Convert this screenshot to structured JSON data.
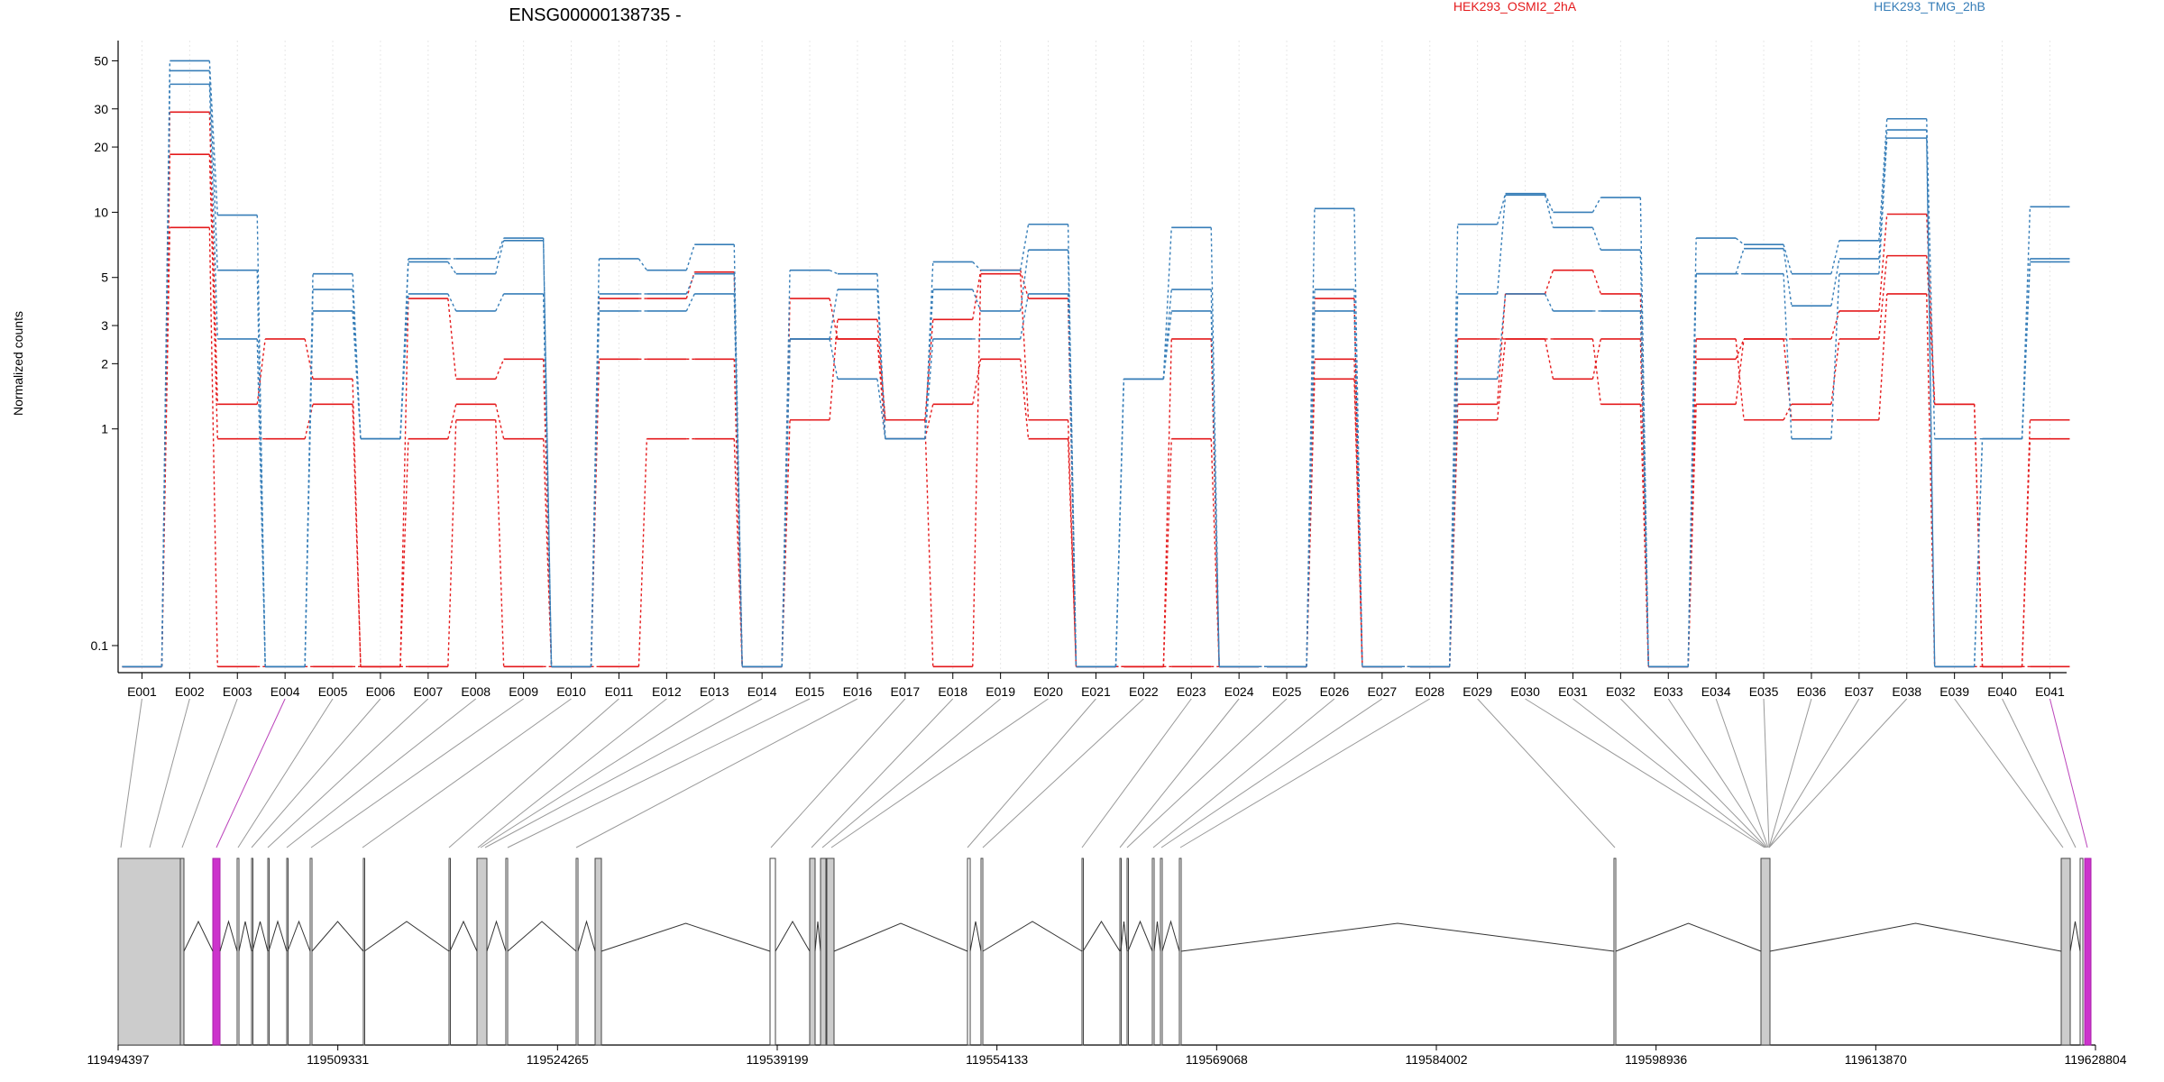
{
  "chart_data": {
    "type": "line",
    "title": "ENSG00000138735 -",
    "ylabel": "Normalized counts",
    "xlabel": "",
    "y_scale": "log",
    "ylim": [
      0.075,
      62
    ],
    "y_ticks": [
      0.1,
      1,
      2,
      3,
      5,
      10,
      20,
      30,
      50
    ],
    "floor_value": 0.08,
    "grid": "vertical dotted lines at each exon",
    "legend_placement": "top-right",
    "colors": {
      "red": "#e41a1c",
      "blue": "#377eb8",
      "intron": "#555555",
      "exon_fill": "#cccccc",
      "highlight": "#cc33cc"
    },
    "categories": [
      "E001",
      "E002",
      "E003",
      "E004",
      "E005",
      "E006",
      "E007",
      "E008",
      "E009",
      "E010",
      "E011",
      "E012",
      "E013",
      "E014",
      "E015",
      "E016",
      "E017",
      "E018",
      "E019",
      "E020",
      "E021",
      "E022",
      "E023",
      "E024",
      "E025",
      "E026",
      "E027",
      "E028",
      "E029",
      "E030",
      "E031",
      "E032",
      "E033",
      "E034",
      "E035",
      "E036",
      "E037",
      "E038",
      "E039",
      "E040",
      "E041"
    ],
    "highlighted_exons": [
      "E004",
      "E041"
    ],
    "series": [
      {
        "name": "HEK293_OSMI2_2hA",
        "color": "#e41a1c",
        "values": [
          0.08,
          29,
          1.3,
          2.6,
          1.7,
          0.08,
          4,
          1.7,
          2.1,
          0.08,
          4,
          4,
          5.3,
          0.08,
          4,
          2.6,
          1.1,
          3.2,
          5.4,
          4,
          0.08,
          0.08,
          2.6,
          0.08,
          0.08,
          4,
          0.08,
          0.08,
          2.6,
          2.6,
          1.7,
          2.6,
          0.08,
          2.1,
          2.6,
          2.6,
          3.5,
          9.8,
          1.3,
          0.08,
          1.1
        ]
      },
      {
        "color": "#e41a1c",
        "values": [
          0.08,
          18.5,
          0.9,
          0.9,
          1.3,
          0.08,
          0.9,
          1.3,
          0.9,
          0.08,
          2.1,
          2.1,
          2.1,
          0.08,
          2.6,
          2.6,
          0.9,
          1.3,
          2.1,
          0.9,
          0.08,
          0.08,
          0.9,
          0.08,
          0.08,
          2.1,
          0.08,
          0.08,
          1.3,
          4.2,
          5.4,
          4.2,
          0.08,
          2.6,
          1.1,
          1.3,
          2.6,
          6.3,
          1.3,
          0.08,
          0.9
        ]
      },
      {
        "color": "#e41a1c",
        "values": [
          0.08,
          8.5,
          0.08,
          0.08,
          0.08,
          0.08,
          0.08,
          1.1,
          0.08,
          0.08,
          0.08,
          0.9,
          0.9,
          0.08,
          1.1,
          3.2,
          1.1,
          0.08,
          5.2,
          1.1,
          0.08,
          0.08,
          0.08,
          0.08,
          0.08,
          1.7,
          0.08,
          0.08,
          1.1,
          2.6,
          2.6,
          1.3,
          0.08,
          1.3,
          2.6,
          1.1,
          1.1,
          4.2,
          0.08,
          0.08,
          0.08
        ]
      },
      {
        "name": "HEK293_TMG_2hB",
        "color": "#377eb8",
        "values": [
          0.08,
          50,
          9.7,
          0.08,
          5.2,
          0.9,
          6.1,
          6.1,
          7.6,
          0.08,
          6.1,
          5.4,
          7.1,
          0.08,
          5.4,
          5.2,
          0.9,
          5.9,
          5.4,
          8.8,
          0.08,
          1.7,
          8.5,
          0.08,
          0.08,
          10.4,
          0.08,
          0.08,
          8.8,
          12.2,
          10,
          11.7,
          0.08,
          7.6,
          7.1,
          5.2,
          7.4,
          27,
          0.9,
          0.9,
          10.6
        ]
      },
      {
        "color": "#377eb8",
        "values": [
          0.08,
          45,
          5.4,
          0.08,
          4.4,
          0.9,
          5.9,
          5.2,
          7.4,
          0.08,
          4.2,
          4.2,
          5.2,
          0.08,
          2.6,
          4.4,
          0.9,
          4.4,
          3.5,
          6.7,
          0.08,
          1.7,
          4.4,
          0.08,
          0.08,
          4.4,
          0.08,
          0.08,
          4.2,
          12,
          8.5,
          6.7,
          0.08,
          5.2,
          6.8,
          3.7,
          6.1,
          24,
          0.08,
          0.9,
          6.1
        ]
      },
      {
        "color": "#377eb8",
        "values": [
          0.08,
          39,
          2.6,
          0.08,
          3.5,
          0.9,
          4.2,
          3.5,
          4.2,
          0.08,
          3.5,
          3.5,
          4.2,
          0.08,
          2.6,
          1.7,
          0.9,
          2.6,
          2.6,
          4.2,
          0.08,
          1.7,
          3.5,
          0.08,
          0.08,
          3.5,
          0.08,
          0.08,
          1.7,
          4.2,
          3.5,
          3.5,
          0.08,
          5.2,
          5.2,
          0.9,
          5.2,
          22,
          0.08,
          0.9,
          5.9
        ]
      }
    ],
    "genomic_axis": {
      "ticks": [
        "119494397",
        "119509331",
        "119524265",
        "119539199",
        "119554133",
        "119569068",
        "119584002",
        "119598936",
        "119613870",
        "119628804"
      ]
    }
  }
}
